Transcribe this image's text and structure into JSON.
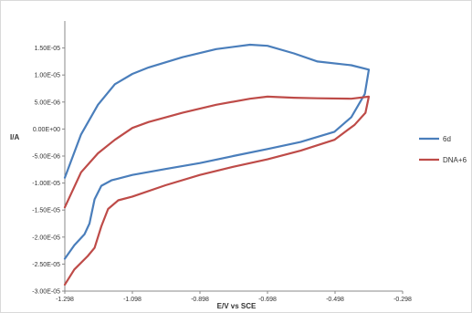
{
  "chart_data": {
    "type": "line",
    "title": "",
    "xlabel": "E/V vs SCE",
    "ylabel": "I/A",
    "xlim": [
      -1.298,
      -0.298
    ],
    "ylim": [
      -3e-05,
      2e-05
    ],
    "x_ticks": [
      -1.298,
      -1.098,
      -0.898,
      -0.698,
      -0.498,
      -0.298
    ],
    "x_tick_labels": [
      "-1.298",
      "-1.098",
      "-0.898",
      "-0.698",
      "-0.498",
      "-0.298"
    ],
    "y_ticks": [
      1.5e-05,
      1e-05,
      5e-06,
      0,
      -5e-06,
      -1e-05,
      -1.5e-05,
      -2e-05,
      -2.5e-05,
      -3e-05
    ],
    "y_tick_labels": [
      "1.50E-05",
      "1.00E-05",
      "5.00E-06",
      "0.00E+00",
      "-5.00E-06",
      "-1.00E-05",
      "-1.50E-05",
      "-2.00E-05",
      "-2.50E-05",
      "-3.00E-05"
    ],
    "grid": false,
    "legend_position": "right",
    "series": [
      {
        "name": "6d",
        "color": "#4a7ebb",
        "points": [
          [
            -1.298,
            -2.4e-05
          ],
          [
            -1.27,
            -2.15e-05
          ],
          [
            -1.24,
            -1.95e-05
          ],
          [
            -1.225,
            -1.75e-05
          ],
          [
            -1.21,
            -1.3e-05
          ],
          [
            -1.19,
            -1.05e-05
          ],
          [
            -1.16,
            -9.5e-06
          ],
          [
            -1.098,
            -8.5e-06
          ],
          [
            -1.0,
            -7.4e-06
          ],
          [
            -0.898,
            -6.3e-06
          ],
          [
            -0.8,
            -5e-06
          ],
          [
            -0.698,
            -3.7e-06
          ],
          [
            -0.6,
            -2.4e-06
          ],
          [
            -0.5,
            -5e-07
          ],
          [
            -0.45,
            2.2e-06
          ],
          [
            -0.41,
            6.5e-06
          ],
          [
            -0.398,
            1.1e-05
          ],
          [
            -0.45,
            1.18e-05
          ],
          [
            -0.55,
            1.25e-05
          ],
          [
            -0.62,
            1.4e-05
          ],
          [
            -0.698,
            1.54e-05
          ],
          [
            -0.75,
            1.56e-05
          ],
          [
            -0.85,
            1.48e-05
          ],
          [
            -0.95,
            1.33e-05
          ],
          [
            -1.05,
            1.14e-05
          ],
          [
            -1.098,
            1.02e-05
          ],
          [
            -1.15,
            8.3e-06
          ],
          [
            -1.2,
            4.5e-06
          ],
          [
            -1.25,
            -1e-06
          ],
          [
            -1.298,
            -9e-06
          ]
        ]
      },
      {
        "name": "DNA+6",
        "color": "#be4b48",
        "points": [
          [
            -1.298,
            -2.88e-05
          ],
          [
            -1.27,
            -2.6e-05
          ],
          [
            -1.23,
            -2.35e-05
          ],
          [
            -1.21,
            -2.2e-05
          ],
          [
            -1.19,
            -1.8e-05
          ],
          [
            -1.17,
            -1.48e-05
          ],
          [
            -1.14,
            -1.32e-05
          ],
          [
            -1.098,
            -1.25e-05
          ],
          [
            -1.0,
            -1.04e-05
          ],
          [
            -0.898,
            -8.5e-06
          ],
          [
            -0.8,
            -7e-06
          ],
          [
            -0.698,
            -5.6e-06
          ],
          [
            -0.6,
            -4e-06
          ],
          [
            -0.5,
            -2e-06
          ],
          [
            -0.44,
            8e-07
          ],
          [
            -0.408,
            3e-06
          ],
          [
            -0.398,
            6e-06
          ],
          [
            -0.45,
            5.6e-06
          ],
          [
            -0.55,
            5.7e-06
          ],
          [
            -0.62,
            5.8e-06
          ],
          [
            -0.698,
            6e-06
          ],
          [
            -0.75,
            5.6e-06
          ],
          [
            -0.85,
            4.5e-06
          ],
          [
            -0.95,
            3e-06
          ],
          [
            -1.05,
            1.3e-06
          ],
          [
            -1.098,
            2e-07
          ],
          [
            -1.15,
            -2e-06
          ],
          [
            -1.2,
            -4.5e-06
          ],
          [
            -1.25,
            -8e-06
          ],
          [
            -1.298,
            -1.45e-05
          ]
        ]
      }
    ]
  }
}
